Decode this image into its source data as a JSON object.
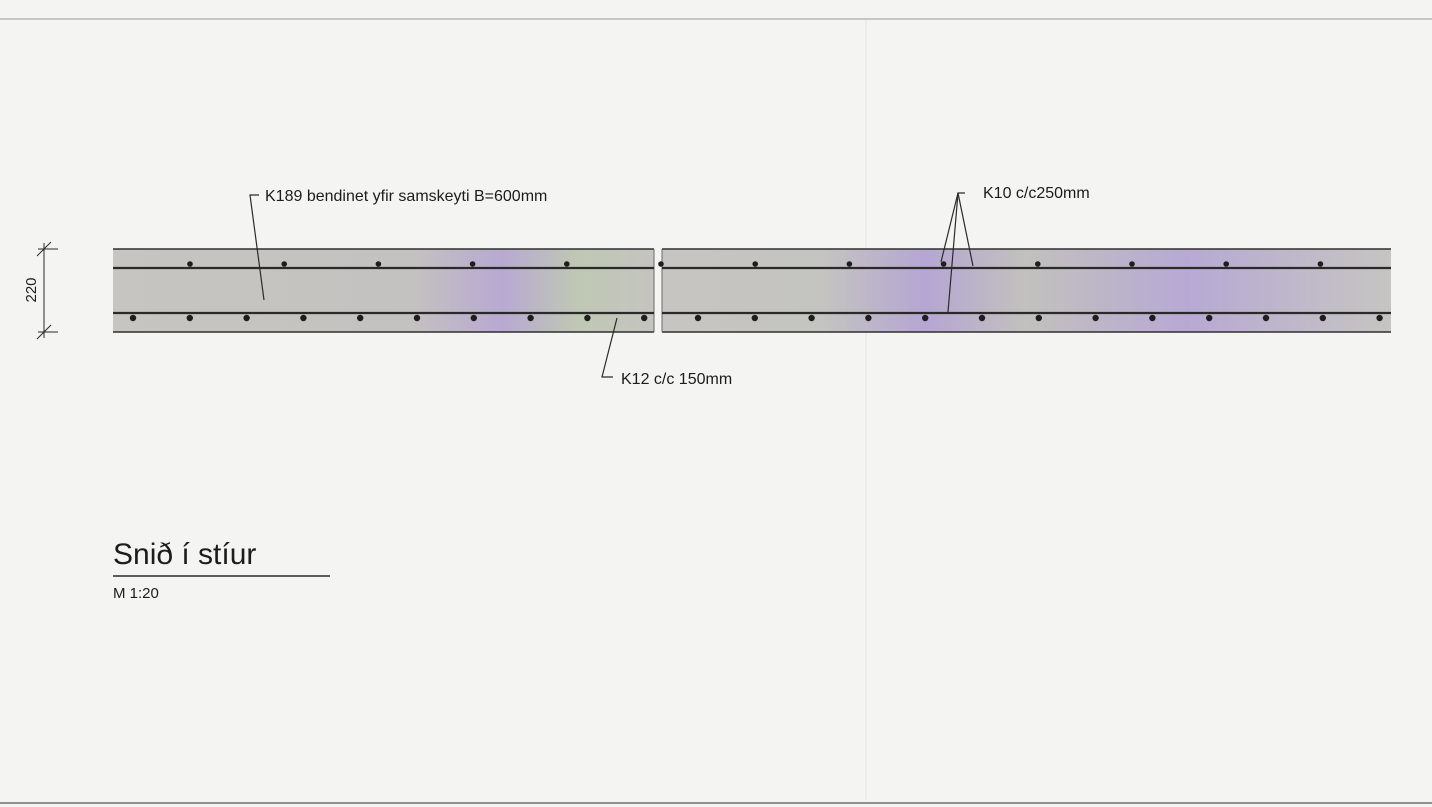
{
  "drawing": {
    "dimension_label": "220",
    "callouts": {
      "mesh": "K189 bendinet yfir samskeyti B=600mm",
      "top_bars": "K10 c/c250mm",
      "bottom_bars": "K12 c/c 150mm"
    },
    "title": "Snið í stíur",
    "scale": "M 1:20"
  },
  "colors": {
    "slab_fill": "#c9c7c2",
    "slab_tint": "#b9a8d8",
    "line": "#2a2a2a"
  }
}
